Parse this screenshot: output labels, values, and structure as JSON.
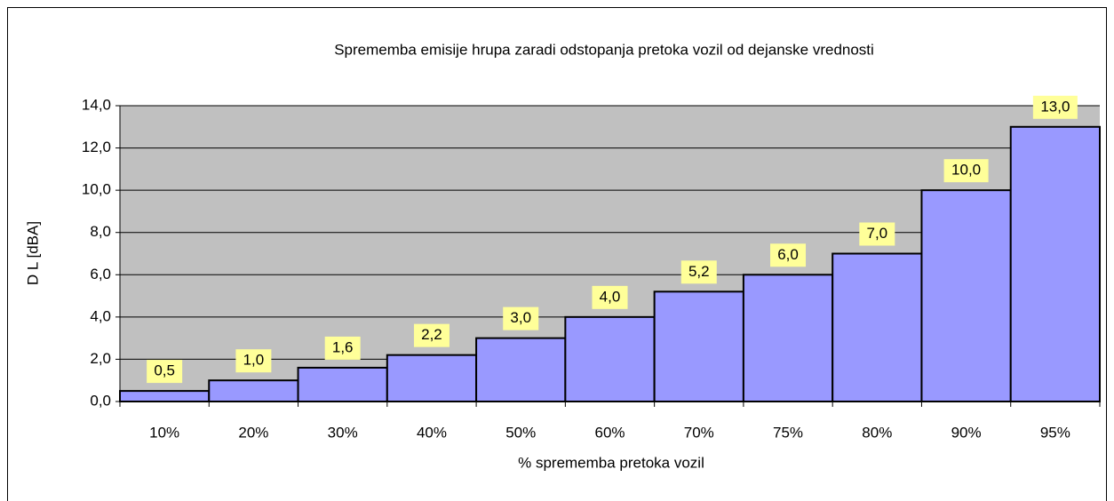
{
  "chart_data": {
    "type": "bar",
    "title": "Sprememba emisije hrupa zaradi odstopanja pretoka vozil od dejanske vrednosti",
    "x_label": "% sprememba pretoka vozil",
    "y_label": "D L  [dBA]",
    "categories": [
      "10%",
      "20%",
      "30%",
      "40%",
      "50%",
      "60%",
      "70%",
      "75%",
      "80%",
      "90%",
      "95%"
    ],
    "values": [
      0.5,
      1.0,
      1.6,
      2.2,
      3.0,
      4.0,
      5.2,
      6.0,
      7.0,
      10.0,
      13.0
    ],
    "value_labels": [
      "0,5",
      "1,0",
      "1,6",
      "2,2",
      "3,0",
      "4,0",
      "5,2",
      "6,0",
      "7,0",
      "10,0",
      "13,0"
    ],
    "color": "#9999ff",
    "ylim": [
      0,
      14
    ],
    "yticks": [
      {
        "value": 0,
        "label": "0,0"
      },
      {
        "value": 2,
        "label": "2,0"
      },
      {
        "value": 4,
        "label": "4,0"
      },
      {
        "value": 6,
        "label": "6,0"
      },
      {
        "value": 8,
        "label": "8,0"
      },
      {
        "value": 10,
        "label": "10,0"
      },
      {
        "value": 12,
        "label": "12,0"
      },
      {
        "value": 14,
        "label": "14,0"
      }
    ],
    "grid": true
  }
}
